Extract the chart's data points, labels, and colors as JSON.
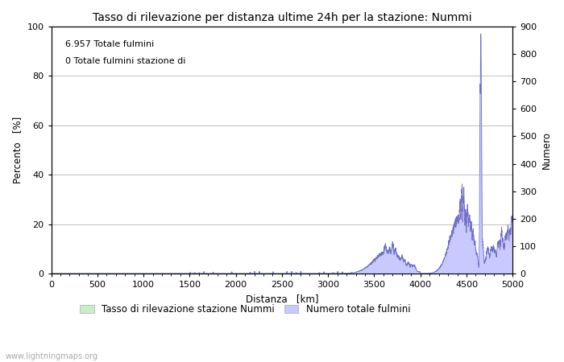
{
  "title": "Tasso di rilevazione per distanza ultime 24h per la stazione: Nummi",
  "xlabel": "Distanza   [km]",
  "ylabel_left": "Percento   [%]",
  "ylabel_right": "Numero",
  "annotation_line1": "6.957 Totale fulmini",
  "annotation_line2": "0 Totale fulmini stazione di",
  "watermark": "www.lightningmaps.org",
  "legend_label_green": "Tasso di rilevazione stazione Nummi",
  "legend_label_blue": "Numero totale fulmini",
  "xlim": [
    0,
    5000
  ],
  "ylim_left": [
    0,
    100
  ],
  "ylim_right": [
    0,
    900
  ],
  "xticks": [
    0,
    500,
    1000,
    1500,
    2000,
    2500,
    3000,
    3500,
    4000,
    4500,
    5000
  ],
  "yticks_left": [
    0,
    20,
    40,
    60,
    80,
    100
  ],
  "yticks_right": [
    0,
    100,
    200,
    300,
    400,
    500,
    600,
    700,
    800,
    900
  ],
  "fill_color_blue": "#c8caff",
  "line_color_blue": "#7070c8",
  "fill_color_green": "#c8eec8",
  "line_color_green": "#88cc88",
  "bg_color": "#ffffff",
  "grid_color": "#c0c0c0",
  "title_fontsize": 10,
  "label_fontsize": 8.5,
  "tick_fontsize": 8,
  "annotation_fontsize": 8
}
